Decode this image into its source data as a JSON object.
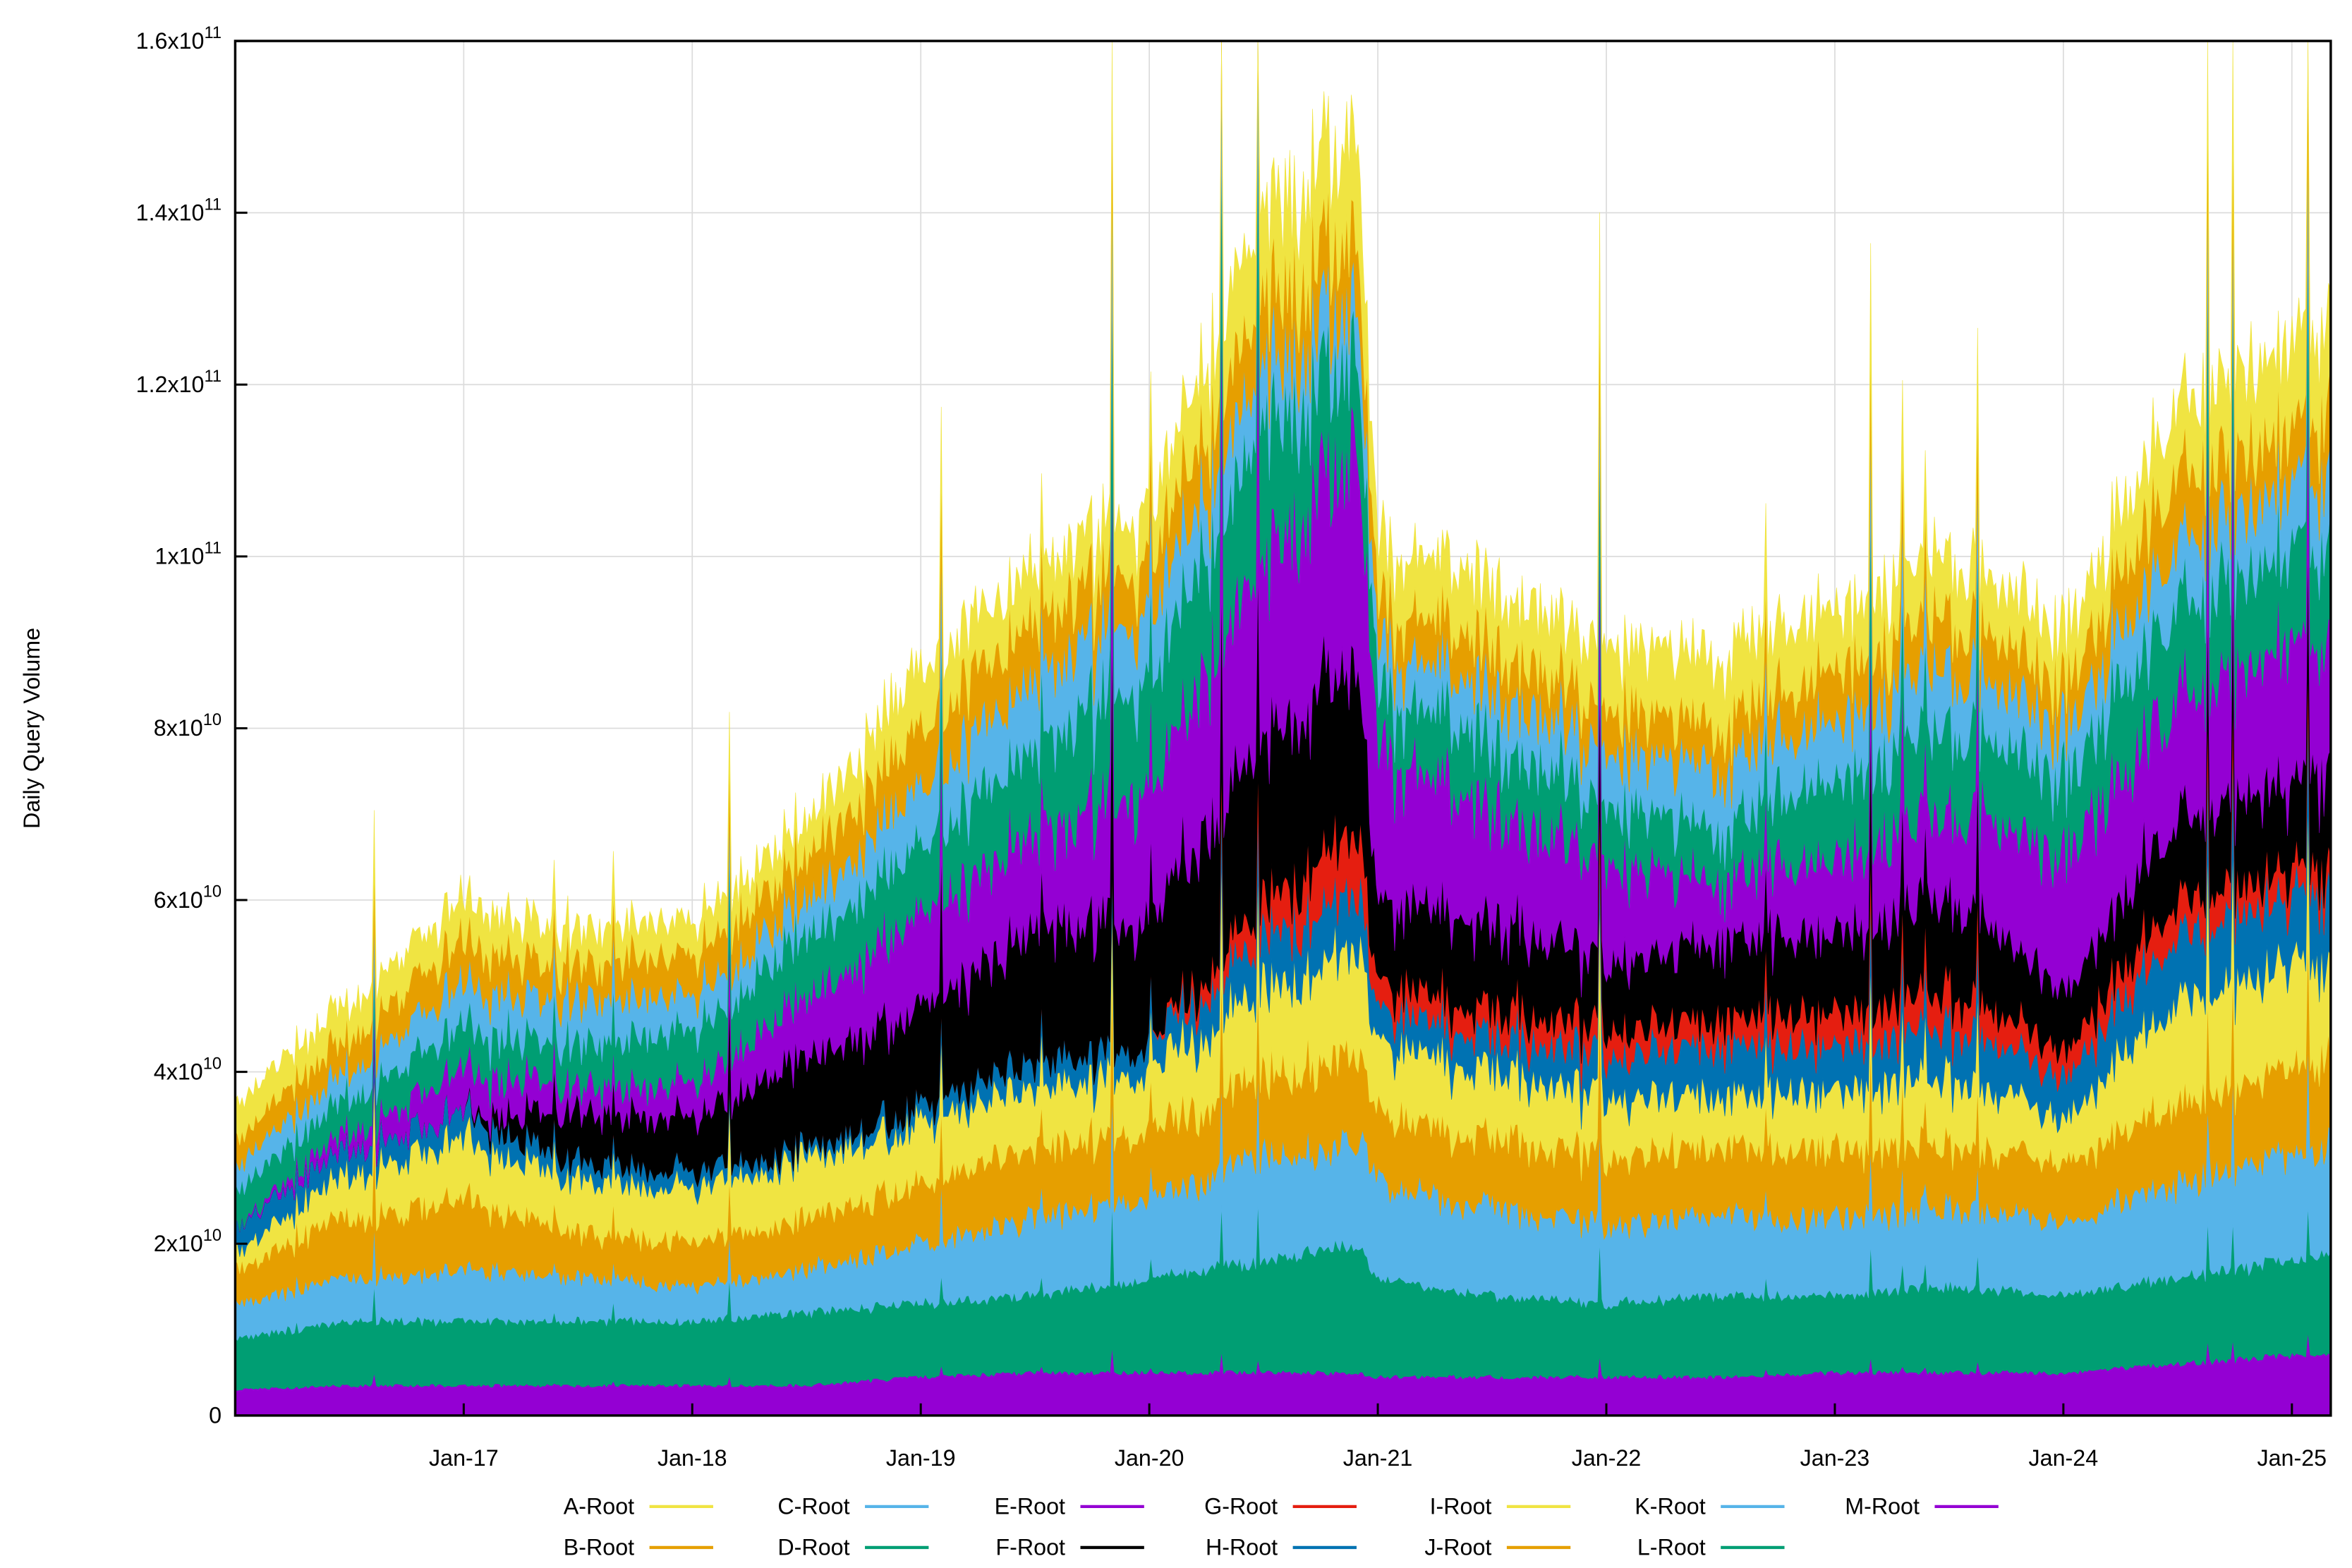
{
  "chart_data": {
    "type": "area",
    "stacked": true,
    "title": "",
    "xlabel": "",
    "ylabel": "Daily Query Volume",
    "values_scale": 1000000000,
    "ylim": [
      0,
      160000000000
    ],
    "xlim": [
      2016.0,
      2025.17
    ],
    "grid": true,
    "legend_placement": "bottom",
    "y_ticks": [
      {
        "value": 0,
        "mantissa": "0",
        "exp": ""
      },
      {
        "value": 20,
        "mantissa": "2x10",
        "exp": "10"
      },
      {
        "value": 40,
        "mantissa": "4x10",
        "exp": "10"
      },
      {
        "value": 60,
        "mantissa": "6x10",
        "exp": "10"
      },
      {
        "value": 80,
        "mantissa": "8x10",
        "exp": "10"
      },
      {
        "value": 100,
        "mantissa": "1x10",
        "exp": "11"
      },
      {
        "value": 120,
        "mantissa": "1.2x10",
        "exp": "11"
      },
      {
        "value": 140,
        "mantissa": "1.4x10",
        "exp": "11"
      },
      {
        "value": 160,
        "mantissa": "1.6x10",
        "exp": "11"
      }
    ],
    "x_ticks": [
      {
        "value": 2017,
        "label": "Jan-17"
      },
      {
        "value": 2018,
        "label": "Jan-18"
      },
      {
        "value": 2019,
        "label": "Jan-19"
      },
      {
        "value": 2020,
        "label": "Jan-20"
      },
      {
        "value": 2021,
        "label": "Jan-21"
      },
      {
        "value": 2022,
        "label": "Jan-22"
      },
      {
        "value": 2023,
        "label": "Jan-23"
      },
      {
        "value": 2024,
        "label": "Jan-24"
      },
      {
        "value": 2025,
        "label": "Jan-25"
      }
    ],
    "x": [
      2016.0,
      2016.5,
      2017.0,
      2017.5,
      2018.0,
      2018.5,
      2019.0,
      2019.5,
      2020.0,
      2020.5,
      2020.9,
      2021.0,
      2021.5,
      2022.0,
      2022.5,
      2023.0,
      2023.5,
      2024.0,
      2024.5,
      2025.0,
      2025.17
    ],
    "stack_order_bottom_to_top": [
      "M-Root",
      "L-Root",
      "K-Root",
      "J-Root",
      "I-Root",
      "H-Root",
      "G-Root",
      "F-Root",
      "E-Root",
      "D-Root",
      "C-Root",
      "B-Root",
      "A-Root"
    ],
    "series": [
      {
        "name": "A-Root",
        "color": "#f0e442",
        "values": [
          4,
          4,
          5,
          4,
          4,
          4,
          7,
          6,
          6,
          10,
          12,
          7,
          7,
          7,
          8,
          7,
          7,
          6,
          8,
          10,
          10
        ]
      },
      {
        "name": "B-Root",
        "color": "#e69f00",
        "values": [
          3,
          4,
          5,
          4,
          5,
          5,
          7,
          7,
          6,
          8,
          8,
          5,
          5,
          5,
          5,
          6,
          6,
          5,
          8,
          6,
          8
        ]
      },
      {
        "name": "C-Root",
        "color": "#56b4e9",
        "values": [
          3,
          3,
          5,
          5,
          4,
          4,
          7,
          8,
          8,
          7,
          6,
          5,
          6,
          6,
          7,
          7,
          7,
          6,
          7,
          8,
          8
        ]
      },
      {
        "name": "D-Root",
        "color": "#009e73",
        "values": [
          4,
          4,
          5,
          5,
          6,
          7,
          8,
          10,
          13,
          15,
          11,
          7,
          8,
          7,
          6,
          9,
          10,
          9,
          11,
          11,
          12
        ]
      },
      {
        "name": "E-Root",
        "color": "#9400d3",
        "values": [
          0,
          2,
          5,
          3,
          4,
          7,
          11,
          11,
          15,
          22,
          25,
          18,
          13,
          12,
          7,
          9,
          10,
          16,
          14,
          16,
          15
        ]
      },
      {
        "name": "F-Root",
        "color": "#000000",
        "values": [
          0,
          0,
          0,
          6,
          6,
          11,
          12,
          15,
          15,
          19,
          20,
          10,
          10,
          8,
          9,
          9,
          11,
          7,
          10,
          10,
          11
        ]
      },
      {
        "name": "G-Root",
        "color": "#e51e10",
        "values": [
          0,
          0,
          0,
          0,
          0,
          0,
          0,
          0,
          0,
          4,
          7,
          3,
          3,
          3,
          3,
          4,
          4,
          3,
          4,
          3,
          3
        ]
      },
      {
        "name": "H-Root",
        "color": "#0072b2",
        "values": [
          3,
          3,
          3,
          2,
          2,
          1,
          2,
          3,
          3,
          6,
          7,
          4,
          4,
          5,
          6,
          5,
          6,
          5,
          8,
          8,
          8
        ]
      },
      {
        "name": "I-Root",
        "color": "#f0e442",
        "values": [
          2,
          5,
          7,
          6,
          6,
          7,
          7,
          7,
          7,
          10,
          13,
          8,
          8,
          7,
          6,
          7,
          8,
          5,
          12,
          12,
          11
        ]
      },
      {
        "name": "J-Root",
        "color": "#e69f00",
        "values": [
          4,
          7,
          8,
          5,
          5,
          6,
          7,
          8,
          8,
          9,
          11,
          8,
          8,
          8,
          8,
          8,
          7,
          7,
          9,
          10,
          10
        ]
      },
      {
        "name": "K-Root",
        "color": "#56b4e9",
        "values": [
          4,
          5,
          6,
          5,
          4,
          5,
          7,
          9,
          9,
          12,
          12,
          11,
          10,
          9,
          9,
          9,
          9,
          9,
          11,
          12,
          13
        ]
      },
      {
        "name": "L-Root",
        "color": "#009e73",
        "values": [
          6,
          7.5,
          7.5,
          7.5,
          7.5,
          8.5,
          8.5,
          9,
          11,
          13,
          15,
          11.5,
          9.5,
          8.5,
          9.5,
          9,
          10,
          9,
          10,
          11,
          12
        ]
      },
      {
        "name": "M-Root",
        "color": "#9400d3",
        "values": [
          3,
          3.5,
          3.5,
          3.5,
          3.5,
          3.5,
          4.5,
          5,
          5,
          5,
          5,
          4.5,
          4.5,
          4.5,
          4.5,
          5,
          5,
          5,
          6,
          7,
          7
        ]
      }
    ]
  }
}
